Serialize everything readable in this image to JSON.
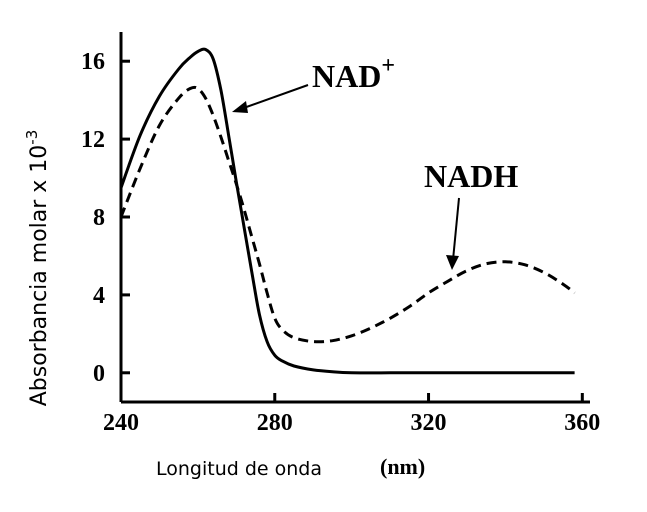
{
  "chart_data": {
    "type": "line",
    "xlabel": "Longitud de onda",
    "xunit": "(nm)",
    "ylabel_main": "Absorbancia molar x 10",
    "ylabel_exp": "-3",
    "xlim": [
      240,
      362
    ],
    "ylim": [
      -1.5,
      17.5
    ],
    "x_ticks": [
      240,
      280,
      320,
      360
    ],
    "x_tick_labels": [
      "240",
      "280",
      "320",
      "360"
    ],
    "y_ticks": [
      0,
      4,
      8,
      12,
      16
    ],
    "y_tick_labels": [
      "0",
      "4",
      "8",
      "12",
      "16"
    ],
    "grid": false,
    "legend": "none",
    "series": [
      {
        "name": "NAD",
        "name_sup": "+",
        "style": "solid",
        "color": "#000000",
        "x": [
          240,
          245,
          250,
          255,
          258,
          260,
          262,
          264,
          266,
          268,
          270,
          272,
          274,
          276,
          278,
          280,
          282,
          285,
          290,
          295,
          300,
          310,
          320,
          340,
          358
        ],
        "y": [
          9.5,
          12.2,
          14.2,
          15.6,
          16.2,
          16.5,
          16.6,
          16.1,
          14.5,
          12.2,
          9.8,
          7.5,
          5.2,
          3.0,
          1.6,
          0.9,
          0.6,
          0.35,
          0.15,
          0.05,
          0.0,
          0.0,
          0.0,
          0.0,
          0.0
        ]
      },
      {
        "name": "NADH",
        "style": "dashed",
        "color": "#000000",
        "x": [
          240,
          245,
          250,
          255,
          258,
          260,
          262,
          264,
          266,
          268,
          270,
          272,
          274,
          276,
          278,
          280,
          282,
          285,
          290,
          295,
          300,
          305,
          310,
          315,
          320,
          325,
          330,
          335,
          340,
          345,
          350,
          355,
          358
        ],
        "y": [
          8.0,
          10.5,
          12.7,
          14.1,
          14.6,
          14.6,
          14.1,
          13.2,
          12.1,
          10.9,
          9.7,
          8.4,
          7.0,
          5.6,
          4.1,
          2.8,
          2.2,
          1.8,
          1.6,
          1.65,
          1.9,
          2.3,
          2.8,
          3.4,
          4.1,
          4.7,
          5.25,
          5.6,
          5.7,
          5.55,
          5.15,
          4.55,
          4.1
        ]
      }
    ]
  }
}
